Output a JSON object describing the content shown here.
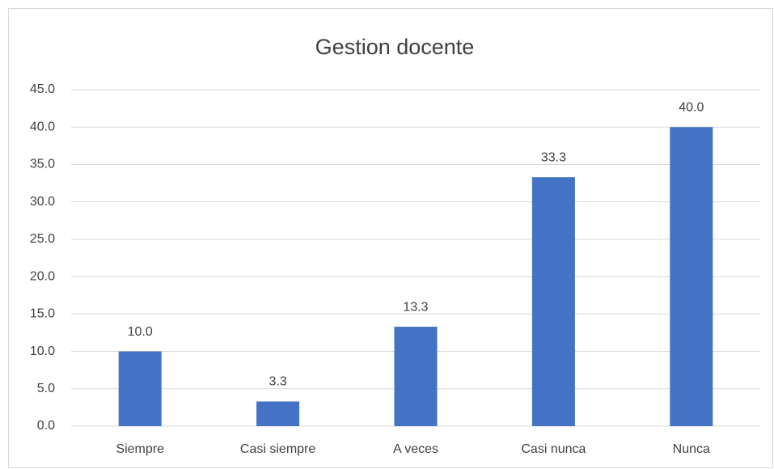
{
  "chart_data": {
    "type": "bar",
    "title": "Gestion docente",
    "categories": [
      "Siempre",
      "Casi siempre",
      "A veces",
      "Casi nunca",
      "Nunca"
    ],
    "values": [
      10.0,
      3.3,
      13.3,
      33.3,
      40.0
    ],
    "value_labels": [
      "10.0",
      "3.3",
      "13.3",
      "33.3",
      "40.0"
    ],
    "color": "#4472c4",
    "ylim": [
      0,
      45
    ],
    "yticks": [
      {
        "value": 0,
        "label": "0.0"
      },
      {
        "value": 5,
        "label": "5.0"
      },
      {
        "value": 10,
        "label": "10.0"
      },
      {
        "value": 15,
        "label": "15.0"
      },
      {
        "value": 20,
        "label": "20.0"
      },
      {
        "value": 25,
        "label": "25.0"
      },
      {
        "value": 30,
        "label": "30.0"
      },
      {
        "value": 35,
        "label": "35.0"
      },
      {
        "value": 40,
        "label": "40.0"
      },
      {
        "value": 45,
        "label": "45.0"
      }
    ],
    "grid": true
  }
}
